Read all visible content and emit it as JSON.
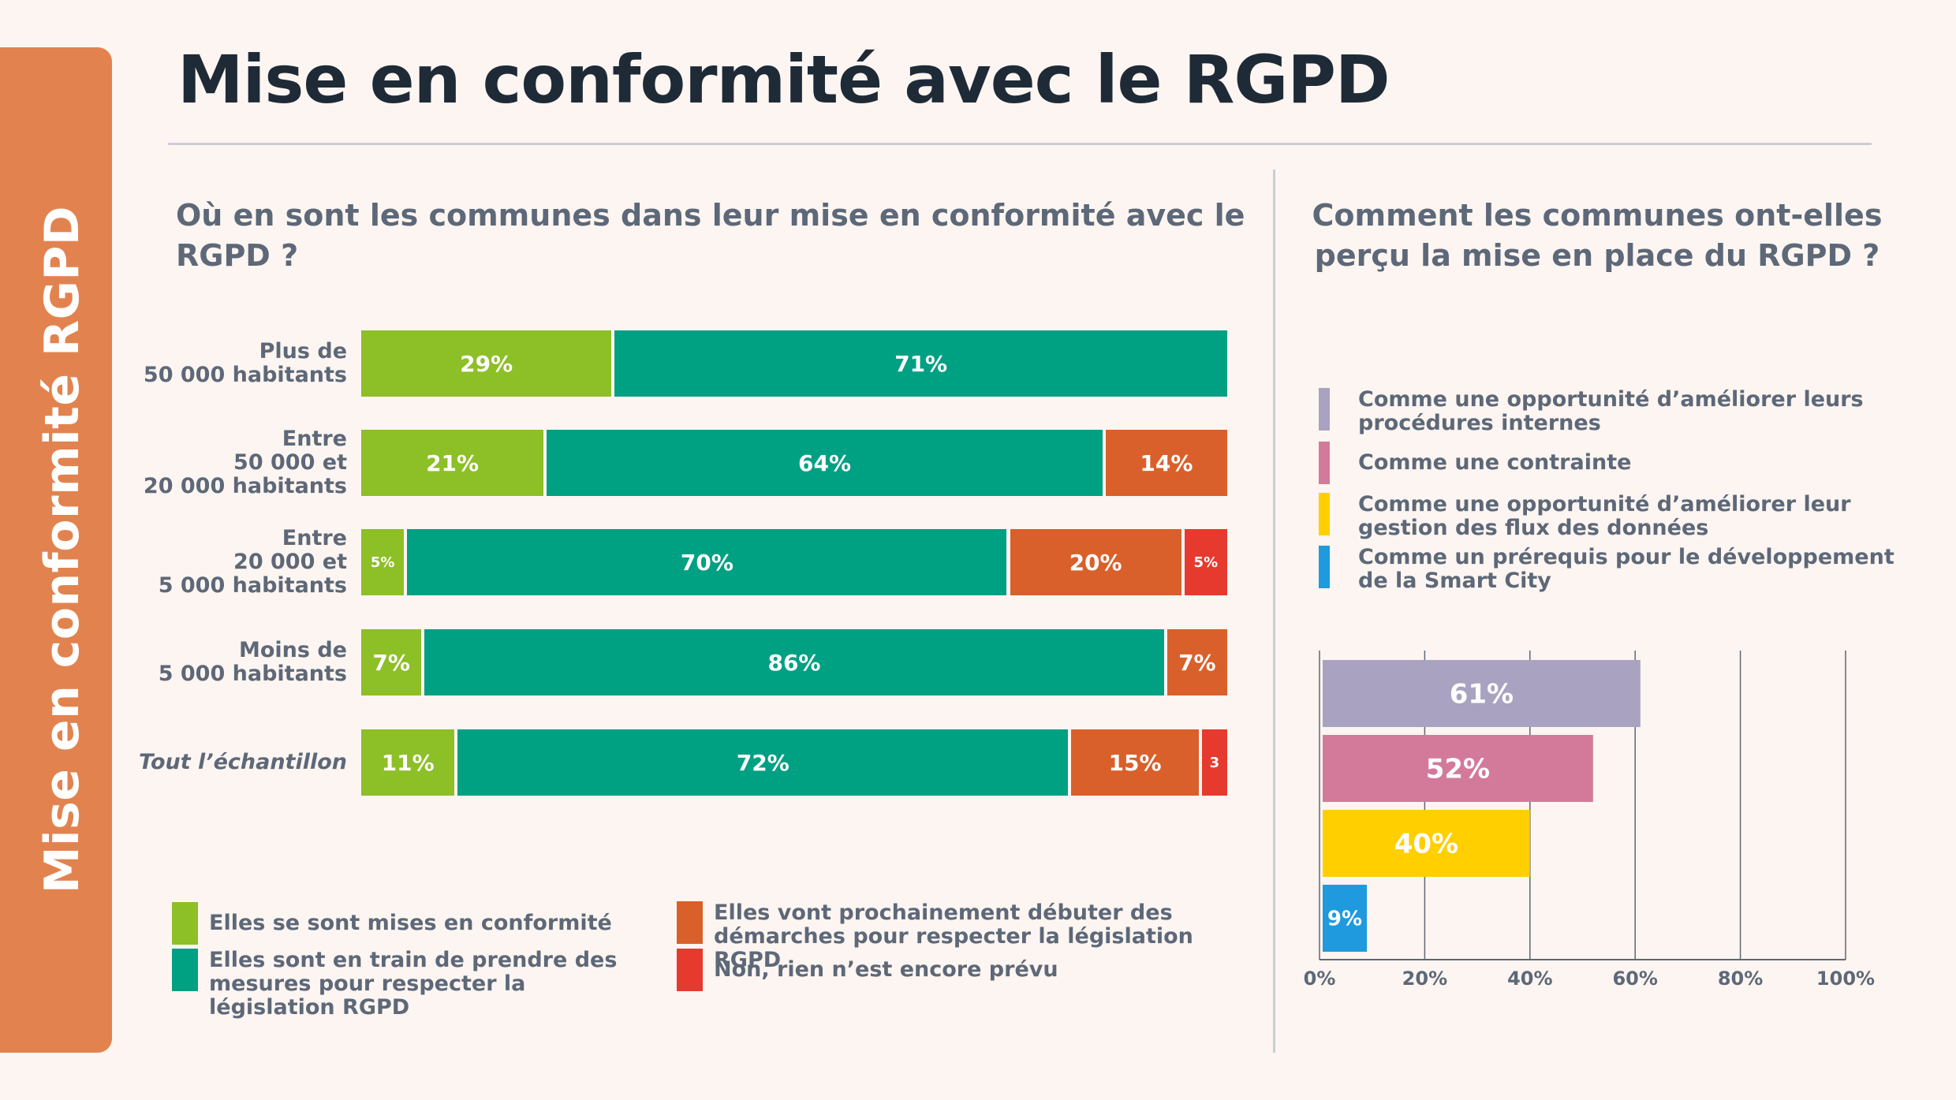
{
  "side_tab": {
    "label": "Mise en conformité RGPD",
    "color": "#e2834f"
  },
  "title": "Mise en conformité avec le RGPD",
  "left": {
    "question": "Où en sont les communes dans leur mise en conformité avec le RGPD ?",
    "rows": [
      {
        "label": "Plus de\n50 000 habitants",
        "italic": false,
        "segments": [
          {
            "value": 29,
            "text": "29%"
          },
          {
            "value": 71,
            "text": "71%"
          }
        ]
      },
      {
        "label": "Entre\n50 000 et\n20 000 habitants",
        "italic": false,
        "segments": [
          {
            "value": 21,
            "text": "21%"
          },
          {
            "value": 64,
            "text": "64%"
          },
          {
            "value": 14,
            "text": "14%"
          }
        ]
      },
      {
        "label": "Entre\n20 000 et\n5 000 habitants",
        "italic": false,
        "segments": [
          {
            "value": 5,
            "text": "5%"
          },
          {
            "value": 70,
            "text": "70%"
          },
          {
            "value": 20,
            "text": "20%"
          },
          {
            "value": 5,
            "text": "5%"
          }
        ]
      },
      {
        "label": "Moins de\n5 000 habitants",
        "italic": false,
        "segments": [
          {
            "value": 7,
            "text": "7%"
          },
          {
            "value": 86,
            "text": "86%"
          },
          {
            "value": 7,
            "text": "7%"
          }
        ]
      },
      {
        "label": "Tout l’échantillon",
        "italic": true,
        "segments": [
          {
            "value": 11,
            "text": "11%"
          },
          {
            "value": 72,
            "text": "72%"
          },
          {
            "value": 15,
            "text": "15%"
          },
          {
            "value": 3,
            "text": "3"
          }
        ]
      }
    ],
    "series_colors": [
      "#8dbf27",
      "#00a083",
      "#d9602a",
      "#e63a2e"
    ],
    "legend": [
      {
        "label": "Elles se sont mises en conformité",
        "color": "#8dbf27"
      },
      {
        "label": "Elles sont en train de prendre des mesures pour respecter la législation RGPD",
        "color": "#00a083"
      },
      {
        "label": "Elles vont prochainement débuter des démarches pour respecter la législation RGPD",
        "color": "#d9602a"
      },
      {
        "label": "Non, rien n’est encore prévu",
        "color": "#e63a2e"
      }
    ]
  },
  "right": {
    "question": "Comment les communes ont-elles perçu la mise en place du RGPD ?",
    "legend": [
      {
        "label": "Comme une opportunité d’améliorer leurs procédures internes",
        "color": "#a9a3c1"
      },
      {
        "label": "Comme une contrainte",
        "color": "#d37a9b"
      },
      {
        "label": "Comme une opportunité d’améliorer leur gestion des flux des données",
        "color": "#ffcf00"
      },
      {
        "label": "Comme un prérequis pour le développement de la Smart City",
        "color": "#1f9ade"
      }
    ]
  },
  "chart_data": [
    {
      "type": "bar",
      "orientation": "horizontal",
      "stacked": true,
      "title": "Où en sont les communes dans leur mise en conformité avec le RGPD ?",
      "categories": [
        "Plus de 50 000 habitants",
        "Entre 50 000 et 20 000 habitants",
        "Entre 20 000 et 5 000 habitants",
        "Moins de 5 000 habitants",
        "Tout l’échantillon"
      ],
      "series": [
        {
          "name": "Elles se sont mises en conformité",
          "values": [
            29,
            21,
            5,
            7,
            11
          ]
        },
        {
          "name": "Elles sont en train de prendre des mesures pour respecter la législation RGPD",
          "values": [
            71,
            64,
            70,
            86,
            72
          ]
        },
        {
          "name": "Elles vont prochainement débuter des démarches pour respecter la législation RGPD",
          "values": [
            0,
            14,
            20,
            7,
            15
          ]
        },
        {
          "name": "Non, rien n’est encore prévu",
          "values": [
            0,
            0,
            5,
            0,
            3
          ]
        }
      ],
      "legend_position": "bottom"
    },
    {
      "type": "bar",
      "orientation": "horizontal",
      "title": "Comment les communes ont-elles perçu la mise en place du RGPD ?",
      "categories": [
        "Comme une opportunité d’améliorer leurs procédures internes",
        "Comme une contrainte",
        "Comme une opportunité d’améliorer leur gestion des flux des données",
        "Comme un prérequis pour le développement de la Smart City"
      ],
      "values": [
        61,
        52,
        40,
        9
      ],
      "value_labels": [
        "61%",
        "52%",
        "40%",
        "9%"
      ],
      "xlim": [
        0,
        100
      ],
      "xticks": [
        "0%",
        "20%",
        "40%",
        "60%",
        "80%",
        "100%"
      ],
      "grid": true,
      "legend_position": "top"
    }
  ]
}
